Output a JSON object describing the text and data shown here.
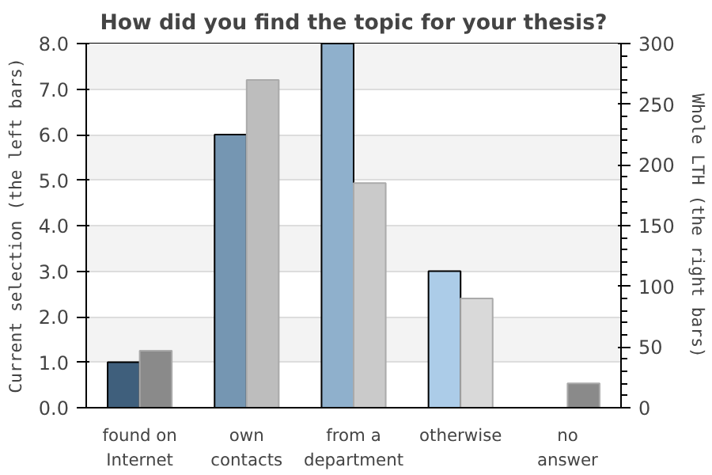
{
  "chart_data": {
    "type": "bar",
    "title": "How did you find the topic for your thesis?",
    "ylabel": "Current selection (the left bars)",
    "y2label": "Whole LTH (the right bars)",
    "categories": [
      "found on\nInternet",
      "own\ncontacts",
      "from a\ndepartment",
      "otherwise",
      "no\nanswer"
    ],
    "series": [
      {
        "colors": [
          "#3f5f7c",
          "#7596b2",
          "#8fb0cc",
          "#acccE8",
          null
        ],
        "values": [
          1,
          6,
          8,
          3,
          null
        ]
      },
      {
        "colors": [
          "#8a8a8a",
          "#bdbdbd",
          "#cacaca",
          "#d9d9d9",
          "#8a8a8a"
        ],
        "values": [
          47,
          270,
          185,
          90,
          20
        ],
        "axis": "y2"
      }
    ],
    "ylim": [
      0,
      8
    ],
    "yticks": [
      {
        "value": 0,
        "label": "0.0"
      },
      {
        "value": 1,
        "label": "1.0"
      },
      {
        "value": 2,
        "label": "2.0"
      },
      {
        "value": 3,
        "label": "3.0"
      },
      {
        "value": 4,
        "label": "4.0"
      },
      {
        "value": 5,
        "label": "5.0"
      },
      {
        "value": 6,
        "label": "6.0"
      },
      {
        "value": 7,
        "label": "7.0"
      },
      {
        "value": 8,
        "label": "8.0"
      }
    ],
    "y2lim": [
      0,
      300
    ],
    "y2ticks": [
      0,
      50,
      100,
      150,
      200,
      250,
      300
    ],
    "grid": "y"
  }
}
